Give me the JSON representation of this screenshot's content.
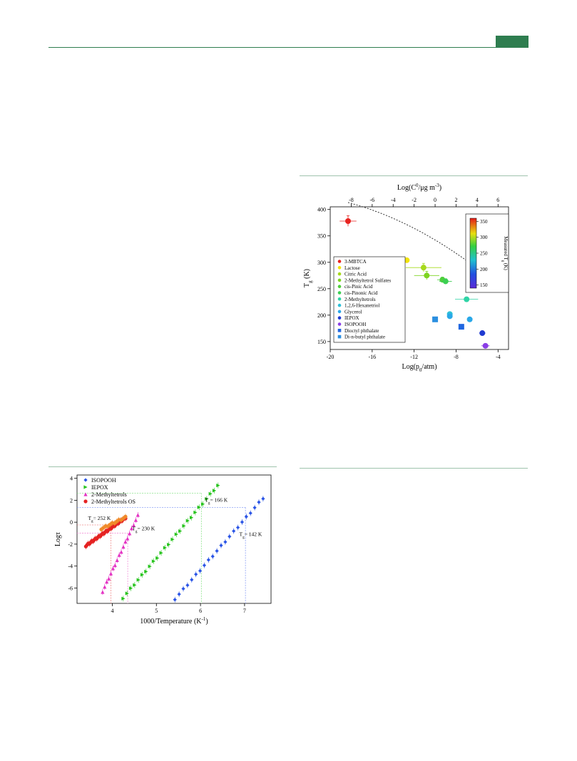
{
  "colors": {
    "header_green": "#2e7d4f",
    "rule_green": "#9fc3ad"
  },
  "chart_data": [
    {
      "type": "scatter",
      "title": "",
      "xlabel": "Log(p0/atm)",
      "xlabel_parts": {
        "pre": "Log(p",
        "sub": "0",
        "post": "/atm)"
      },
      "ylabel": "Tg (K)",
      "ylabel_parts": {
        "pre": "T",
        "sub": "g",
        "post": " (K)"
      },
      "x2label": "Log(C0/μg m-3)",
      "x2label_parts": {
        "pre": "Log(C",
        "sup": "0",
        "mid": "/μg m",
        "sup2": "-3",
        "post": ")"
      },
      "xlim": [
        -20,
        -3
      ],
      "ylim": [
        135,
        405
      ],
      "xticks": [
        -20,
        -16,
        -12,
        -8,
        -4
      ],
      "yticks": [
        150,
        200,
        250,
        300,
        350,
        400
      ],
      "x2ticks": [
        -8,
        -6,
        -4,
        -2,
        0,
        2,
        4,
        6
      ],
      "x2_offset": 10,
      "colorbar": {
        "label": "Measured Tg (K)",
        "label_parts": {
          "pre": "Measured T",
          "sub": "g",
          "post": " (K)"
        },
        "range": [
          140,
          360
        ],
        "ticks": [
          150,
          200,
          250,
          300,
          350
        ]
      },
      "fit_curve": {
        "a": -0.3936,
        "b": -19.69,
        "c": 184.7
      },
      "legend_position": "left",
      "legend": [
        {
          "name": "3-MBTCA",
          "color": "#e8231f",
          "marker": "circle"
        },
        {
          "name": "Lactose",
          "color": "#f2e40c",
          "marker": "circle"
        },
        {
          "name": "Citric Acid",
          "color": "#a6d91c",
          "marker": "circle"
        },
        {
          "name": "2-Methyltetrol Sulfates",
          "color": "#7ed321",
          "marker": "circle"
        },
        {
          "name": "cis-Pinic Acid",
          "color": "#4fcf3b",
          "marker": "circle"
        },
        {
          "name": "cis-Pinonic Acid",
          "color": "#3ccf52",
          "marker": "circle"
        },
        {
          "name": "2-Methyltetrols",
          "color": "#2fd4a6",
          "marker": "circle"
        },
        {
          "name": "1,2,6-Hexanetriol",
          "color": "#2ec0d8",
          "marker": "circle"
        },
        {
          "name": "Glycerol",
          "color": "#29a8e8",
          "marker": "circle"
        },
        {
          "name": "IEPOX",
          "color": "#1f3ad1",
          "marker": "circle"
        },
        {
          "name": "ISOPOOH",
          "color": "#8a3ee6",
          "marker": "circle"
        },
        {
          "name": "Dioctyl phthalate",
          "color": "#1f66e0",
          "marker": "square"
        },
        {
          "name": "Di-n-butyl phthalate",
          "color": "#2b8fe0",
          "marker": "square"
        }
      ],
      "points": [
        {
          "x": -18.3,
          "y": 378,
          "xerr": 0.8,
          "yerr": 10,
          "color": "#e8231f",
          "marker": "circle"
        },
        {
          "x": -12.7,
          "y": 304,
          "xerr": 0,
          "yerr": 0,
          "color": "#f2e40c",
          "marker": "circle"
        },
        {
          "x": -11.1,
          "y": 290,
          "xerr": 1.7,
          "yerr": 8,
          "color": "#a6d91c",
          "marker": "circle"
        },
        {
          "x": -10.8,
          "y": 275,
          "xerr": 1.2,
          "yerr": 8,
          "color": "#7ed321",
          "marker": "circle"
        },
        {
          "x": -9.3,
          "y": 267,
          "xerr": 0.5,
          "yerr": 5,
          "color": "#4fcf3b",
          "marker": "circle"
        },
        {
          "x": -9.0,
          "y": 264,
          "xerr": 0.6,
          "yerr": 5,
          "color": "#3ccf52",
          "marker": "circle"
        },
        {
          "x": -7.0,
          "y": 230,
          "xerr": 1.1,
          "yerr": 4,
          "color": "#2fd4a6",
          "marker": "circle"
        },
        {
          "x": -8.6,
          "y": 202,
          "xerr": 0,
          "yerr": 0,
          "color": "#2ec0d8",
          "marker": "circle"
        },
        {
          "x": -8.6,
          "y": 198,
          "xerr": 0,
          "yerr": 0,
          "color": "#29a8e8",
          "marker": "circle"
        },
        {
          "x": -6.7,
          "y": 192,
          "xerr": 0,
          "yerr": 0,
          "color": "#29a8e8",
          "marker": "circle"
        },
        {
          "x": -5.5,
          "y": 166,
          "xerr": 0.3,
          "yerr": 3,
          "color": "#1f3ad1",
          "marker": "circle"
        },
        {
          "x": -5.2,
          "y": 142,
          "xerr": 0.4,
          "yerr": 3,
          "color": "#8a3ee6",
          "marker": "circle"
        },
        {
          "x": -7.5,
          "y": 178,
          "xerr": 0,
          "yerr": 0,
          "color": "#1f66e0",
          "marker": "square"
        },
        {
          "x": -10.0,
          "y": 192,
          "xerr": 0,
          "yerr": 0,
          "color": "#2b8fe0",
          "marker": "square"
        }
      ]
    },
    {
      "type": "scatter",
      "title": "",
      "xlabel": "1000/Temperature (K-1)",
      "xlabel_parts": {
        "pre": "1000/Temperature (K",
        "sup": "-1",
        "post": ")"
      },
      "ylabel": "Logτ",
      "xlim": [
        3.2,
        7.6
      ],
      "ylim": [
        -7.4,
        4.3
      ],
      "xticks": [
        4,
        5,
        6,
        7
      ],
      "yticks": [
        -6,
        -4,
        -2,
        0,
        2,
        4
      ],
      "legend_position": "top-left",
      "series": [
        {
          "name": "ISOPOOH",
          "color": "#2b55e6",
          "marker": "diamond",
          "x_start": 5.42,
          "x_end": 7.42,
          "y_start": -7.0,
          "y_end": 2.2,
          "n": 22
        },
        {
          "name": "IEPOX",
          "color": "#27c41d",
          "marker": "triangle-right",
          "x_start": 4.25,
          "x_end": 6.4,
          "y_start": -6.9,
          "y_end": 3.35,
          "n": 26
        },
        {
          "name": "2-Methyltetrols",
          "color": "#e433c4",
          "marker": "triangle-up",
          "x_start": 3.78,
          "x_end": 4.58,
          "y_start": -6.3,
          "y_end": 0.6,
          "n": 18
        },
        {
          "name": "2-Methyltetrols OS",
          "color": "#e52222",
          "marker": "circle",
          "x_start": 3.4,
          "x_end": 4.3,
          "y_start": -2.15,
          "y_end": 0.4,
          "n": 34
        }
      ],
      "secondary_overlay": {
        "color": "#f08a2a",
        "x_start": 3.75,
        "x_end": 4.3,
        "y_start": -0.6,
        "y_end": 0.45,
        "n": 12
      },
      "tg_markers": [
        {
          "label": "Tg= 252 K",
          "label_parts": {
            "pre": "T",
            "sub": "g",
            "post": "= 252 K"
          },
          "x": 3.97,
          "y": -0.25,
          "color": "#f08a8a",
          "label_x": 3.45,
          "label_y": 0.2
        },
        {
          "label": "Tg= 230 K",
          "label_parts": {
            "pre": "T",
            "sub": "g",
            "post": "= 230 K"
          },
          "x": 4.35,
          "y": -1.0,
          "color": "#f28fd8",
          "label_x": 4.45,
          "label_y": -0.75
        },
        {
          "label": "Tg= 166 K",
          "label_parts": {
            "pre": "T",
            "sub": "g",
            "post": "= 166 K"
          },
          "x": 6.02,
          "y": 2.65,
          "color": "#8be38a",
          "label_x": 6.1,
          "label_y": 1.85
        },
        {
          "label": "Tg= 142 K",
          "label_parts": {
            "pre": "T",
            "sub": "g",
            "post": "= 142 K"
          },
          "x": 7.02,
          "y": 1.35,
          "color": "#8a9ff5",
          "label_x": 6.88,
          "label_y": -1.25
        }
      ]
    }
  ]
}
